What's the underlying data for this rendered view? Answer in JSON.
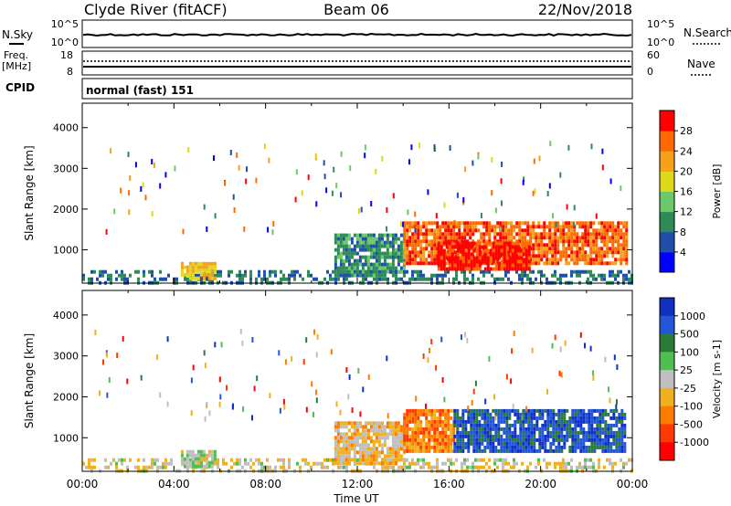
{
  "header": {
    "station": "Clyde River (fitACF)",
    "beam": "Beam 06",
    "date": "22/Nov/2018"
  },
  "nsky_panel": {
    "left_label": "N.Sky",
    "right_label": "N.Search",
    "left_ticks": [
      "10^5",
      "10^0"
    ],
    "right_ticks": [
      "10^5",
      "10^0"
    ]
  },
  "freq_panel": {
    "left_label_1": "Freq.",
    "left_label_2": "[MHz]",
    "right_label": "Nave",
    "left_ticks": [
      "18",
      "8"
    ],
    "right_ticks": [
      "60",
      "0"
    ]
  },
  "cpid": {
    "label": "CPID",
    "text": "normal (fast) 151"
  },
  "colors": {
    "power_scale": [
      "#0000ff",
      "#1f4fa8",
      "#2e8b57",
      "#6bc86b",
      "#e0d81a",
      "#f5a21a",
      "#ff6a00",
      "#ff0000"
    ],
    "velocity_scale": [
      "#1030c0",
      "#2255d8",
      "#2a7a3a",
      "#4fbf4f",
      "#bfbfbf",
      "#f0b020",
      "#ff7a00",
      "#ff3a00",
      "#ff0000"
    ],
    "ground_scatter": "#808080"
  },
  "chart_data": [
    {
      "type": "heatmap",
      "name": "power",
      "ylabel": "Slant Range [km]",
      "colorbar_label": "Power [dB]",
      "colorbar_ticks": [
        "28",
        "24",
        "20",
        "16",
        "12",
        "8",
        "4"
      ],
      "ylim": [
        180,
        4600
      ],
      "yticks": [
        "4000",
        "3000",
        "2000",
        "1000"
      ],
      "xlim": [
        0,
        24
      ],
      "xticks": [
        "00:00",
        "04:00",
        "08:00",
        "12:00",
        "16:00",
        "20:00",
        "00:00"
      ],
      "regions": [
        {
          "t0": 0,
          "t1": 24,
          "r0": 180,
          "r1": 500,
          "value": 8
        },
        {
          "t0": 4.3,
          "t1": 5.8,
          "r0": 280,
          "r1": 700,
          "value": 20
        },
        {
          "t0": 11.0,
          "t1": 14.0,
          "r0": 400,
          "r1": 1400,
          "value": 10
        },
        {
          "t0": 14.0,
          "t1": 23.7,
          "r0": 700,
          "r1": 1700,
          "value": 26
        },
        {
          "t0": 15.5,
          "t1": 19.5,
          "r0": 500,
          "r1": 1200,
          "value": 30
        }
      ]
    },
    {
      "type": "heatmap",
      "name": "velocity",
      "ylabel": "Slant Range [km]",
      "colorbar_label": "Velocity [m s-1]",
      "colorbar_ticks": [
        "1000",
        "500",
        "100",
        "25",
        "-25",
        "-100",
        "-500",
        "-1000"
      ],
      "ylim": [
        180,
        4600
      ],
      "yticks": [
        "4000",
        "3000",
        "2000",
        "1000"
      ],
      "xlim": [
        0,
        24
      ],
      "xticks": [
        "00:00",
        "04:00",
        "08:00",
        "12:00",
        "16:00",
        "20:00",
        "00:00"
      ],
      "xlabel": "Time UT",
      "regions": [
        {
          "t0": 0,
          "t1": 24,
          "r0": 180,
          "r1": 500,
          "value": -100
        },
        {
          "t0": 4.3,
          "t1": 5.8,
          "r0": 280,
          "r1": 700,
          "value": 100
        },
        {
          "t0": 11.0,
          "t1": 14.0,
          "r0": 400,
          "r1": 1400,
          "value": -200
        },
        {
          "t0": 14.0,
          "t1": 16.2,
          "r0": 700,
          "r1": 1700,
          "value": -500
        },
        {
          "t0": 16.2,
          "t1": 23.7,
          "r0": 700,
          "r1": 1700,
          "value": 800
        }
      ]
    }
  ]
}
